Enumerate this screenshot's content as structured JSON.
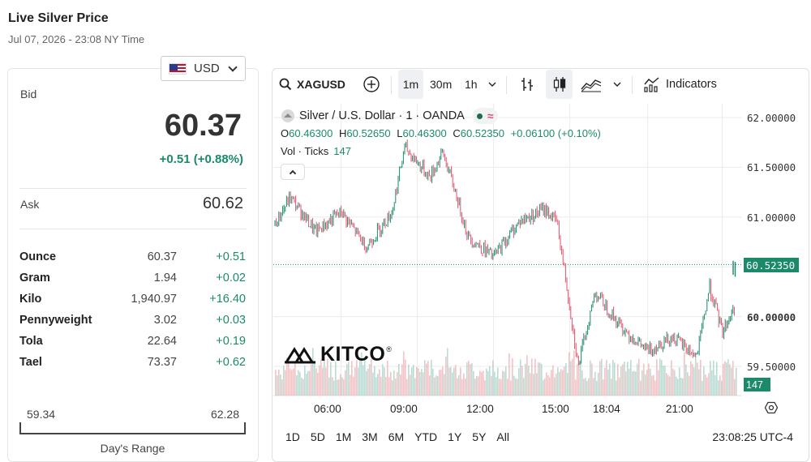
{
  "header": {
    "title": "Live Silver Price",
    "subtitle": "Jul 07, 2026 - 23:08 NY Time"
  },
  "currency": {
    "label": "USD"
  },
  "quote": {
    "bid_label": "Bid",
    "bid": "60.37",
    "change": "+0.51 (+0.88%)",
    "ask_label": "Ask",
    "ask": "60.62"
  },
  "units": [
    {
      "name": "Ounce",
      "value": "60.37",
      "change": "+0.51"
    },
    {
      "name": "Gram",
      "value": "1.94",
      "change": "+0.02"
    },
    {
      "name": "Kilo",
      "value": "1,940.97",
      "change": "+16.40"
    },
    {
      "name": "Pennyweight",
      "value": "3.02",
      "change": "+0.03"
    },
    {
      "name": "Tola",
      "value": "22.64",
      "change": "+0.19"
    },
    {
      "name": "Tael",
      "value": "73.37",
      "change": "+0.62"
    }
  ],
  "days_range": {
    "low": "59.34",
    "high": "62.28",
    "label": "Day's Range"
  },
  "toolbar": {
    "symbol": "XAGUSD",
    "intervals": [
      "1m",
      "30m",
      "1h"
    ],
    "active_interval": "1m",
    "indicators_label": "Indicators"
  },
  "legend": {
    "name": "Silver / U.S. Dollar · 1 · OANDA",
    "o_key": "O",
    "o": "60.46300",
    "h_key": "H",
    "h": "60.52650",
    "l_key": "L",
    "l": "60.46300",
    "c_key": "C",
    "c": "60.52350",
    "change": "+0.06100 (+0.10%)",
    "vol_label": "Vol · Ticks",
    "vol_value": "147"
  },
  "price_tag": "60.52350",
  "vol_tag": "147",
  "watermark": "KITCO",
  "range_buttons": [
    "1D",
    "5D",
    "1M",
    "3M",
    "6M",
    "YTD",
    "1Y",
    "5Y",
    "All"
  ],
  "clock": "23:08:25 UTC-4",
  "colors": {
    "up": "#1b8a6b",
    "down": "#e0526b",
    "vol_up": "#a7d3c8",
    "vol_down": "#f2b3b8",
    "grid": "#ebebeb"
  },
  "chart_data": {
    "type": "line",
    "symbol": "XAGUSD",
    "x_ticks": [
      "06:00",
      "09:00",
      "12:00",
      "15:00",
      "18:04",
      "21:00"
    ],
    "y_ticks": [
      "62.00000",
      "61.50000",
      "61.00000",
      "60.50000",
      "60.00000",
      "59.50000"
    ],
    "ylim": [
      59.4,
      62.0
    ],
    "x": [
      "03:20",
      "04:00",
      "05:00",
      "06:00",
      "07:00",
      "08:00",
      "08:30",
      "09:00",
      "09:30",
      "10:00",
      "10:30",
      "11:00",
      "12:00",
      "13:00",
      "14:00",
      "14:30",
      "15:00",
      "15:20",
      "16:00",
      "17:00",
      "18:04",
      "19:00",
      "20:00",
      "20:30",
      "21:00",
      "21:30",
      "22:00",
      "22:30",
      "23:08"
    ],
    "series": [
      {
        "values": [
          60.9,
          61.2,
          60.85,
          61.05,
          60.7,
          61.05,
          61.7,
          61.55,
          61.4,
          61.65,
          61.25,
          60.8,
          60.6,
          60.95,
          61.08,
          60.95,
          60.1,
          59.5,
          60.25,
          59.9,
          59.65,
          59.8,
          59.6,
          60.3,
          59.85,
          60.1,
          59.75,
          60.05,
          60.52
        ]
      }
    ],
    "volume": "Vol · Ticks",
    "last_volume": 147,
    "last_price": 60.5235
  }
}
